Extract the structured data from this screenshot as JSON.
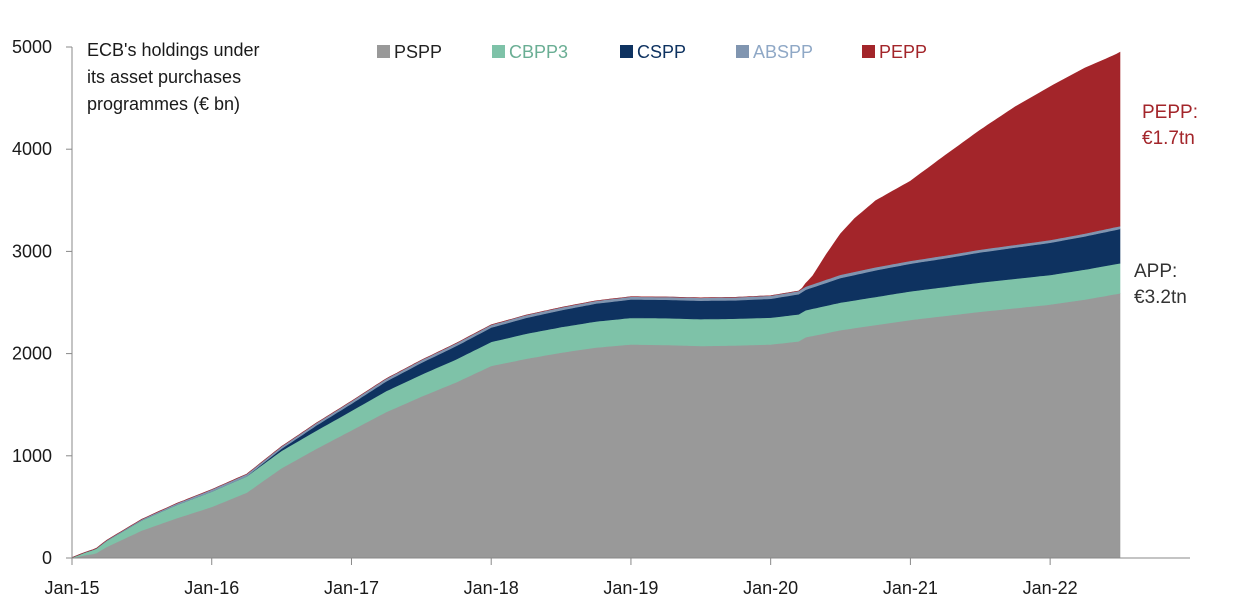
{
  "chart_data": {
    "type": "area",
    "stacked": true,
    "title": [
      "ECB's holdings under",
      "its asset purchases",
      "programmes (€ bn)"
    ],
    "x_labels": [
      "Jan-15",
      "Jan-16",
      "Jan-17",
      "Jan-18",
      "Jan-19",
      "Jan-20",
      "Jan-21",
      "Jan-22"
    ],
    "y_ticks": [
      0,
      1000,
      2000,
      3000,
      4000,
      5000
    ],
    "ylim": [
      0,
      5000
    ],
    "x_range_years": [
      0,
      7.5
    ],
    "legend_position": "top",
    "series": [
      {
        "name": "PSPP",
        "color": "#999999",
        "points": [
          [
            0,
            0
          ],
          [
            0.08,
            25
          ],
          [
            0.17,
            45
          ],
          [
            0.25,
            110
          ],
          [
            0.5,
            270
          ],
          [
            0.75,
            390
          ],
          [
            1.0,
            500
          ],
          [
            1.25,
            640
          ],
          [
            1.5,
            880
          ],
          [
            1.75,
            1070
          ],
          [
            2.0,
            1250
          ],
          [
            2.25,
            1430
          ],
          [
            2.5,
            1580
          ],
          [
            2.75,
            1720
          ],
          [
            3.0,
            1880
          ],
          [
            3.25,
            1950
          ],
          [
            3.5,
            2010
          ],
          [
            3.75,
            2060
          ],
          [
            4.0,
            2090
          ],
          [
            4.25,
            2085
          ],
          [
            4.5,
            2075
          ],
          [
            4.75,
            2080
          ],
          [
            5.0,
            2090
          ],
          [
            5.2,
            2120
          ],
          [
            5.25,
            2160
          ],
          [
            5.5,
            2230
          ],
          [
            5.75,
            2280
          ],
          [
            6.0,
            2330
          ],
          [
            6.25,
            2370
          ],
          [
            6.5,
            2410
          ],
          [
            6.75,
            2445
          ],
          [
            7.0,
            2480
          ],
          [
            7.25,
            2530
          ],
          [
            7.5,
            2590
          ]
        ]
      },
      {
        "name": "CBPP3",
        "color": "#7ec2a8",
        "points": [
          [
            0,
            5
          ],
          [
            0.25,
            60
          ],
          [
            0.5,
            100
          ],
          [
            0.75,
            130
          ],
          [
            1.0,
            150
          ],
          [
            1.25,
            160
          ],
          [
            1.5,
            170
          ],
          [
            1.75,
            178
          ],
          [
            2.0,
            190
          ],
          [
            2.25,
            205
          ],
          [
            2.5,
            215
          ],
          [
            2.75,
            225
          ],
          [
            3.0,
            235
          ],
          [
            3.25,
            245
          ],
          [
            3.5,
            250
          ],
          [
            3.75,
            255
          ],
          [
            4.0,
            260
          ],
          [
            4.25,
            262
          ],
          [
            4.5,
            263
          ],
          [
            4.75,
            262
          ],
          [
            5.0,
            262
          ],
          [
            5.25,
            265
          ],
          [
            5.5,
            270
          ],
          [
            5.75,
            275
          ],
          [
            6.0,
            280
          ],
          [
            6.25,
            283
          ],
          [
            6.5,
            286
          ],
          [
            6.75,
            288
          ],
          [
            7.0,
            290
          ],
          [
            7.25,
            293
          ],
          [
            7.5,
            295
          ]
        ]
      },
      {
        "name": "CSPP",
        "color": "#0e3260",
        "points": [
          [
            0,
            0
          ],
          [
            1.25,
            0
          ],
          [
            1.5,
            20
          ],
          [
            1.75,
            50
          ],
          [
            2.0,
            70
          ],
          [
            2.25,
            95
          ],
          [
            2.5,
            115
          ],
          [
            2.75,
            130
          ],
          [
            3.0,
            140
          ],
          [
            3.25,
            155
          ],
          [
            3.5,
            165
          ],
          [
            3.75,
            175
          ],
          [
            4.0,
            180
          ],
          [
            4.25,
            180
          ],
          [
            4.5,
            180
          ],
          [
            4.75,
            180
          ],
          [
            5.0,
            185
          ],
          [
            5.25,
            200
          ],
          [
            5.5,
            240
          ],
          [
            5.75,
            260
          ],
          [
            6.0,
            270
          ],
          [
            6.25,
            280
          ],
          [
            6.5,
            295
          ],
          [
            6.75,
            305
          ],
          [
            7.0,
            315
          ],
          [
            7.25,
            325
          ],
          [
            7.5,
            335
          ]
        ]
      },
      {
        "name": "ABSPP",
        "color": "#8095b0",
        "points": [
          [
            0,
            0
          ],
          [
            0.25,
            5
          ],
          [
            0.5,
            10
          ],
          [
            1.0,
            20
          ],
          [
            1.5,
            22
          ],
          [
            2.0,
            25
          ],
          [
            2.5,
            26
          ],
          [
            3.0,
            27
          ],
          [
            3.5,
            27
          ],
          [
            4.0,
            27
          ],
          [
            4.5,
            28
          ],
          [
            5.0,
            30
          ],
          [
            5.5,
            32
          ],
          [
            6.0,
            28
          ],
          [
            6.5,
            27
          ],
          [
            7.0,
            27
          ],
          [
            7.5,
            28
          ]
        ]
      },
      {
        "name": "PEPP",
        "color": "#a3252a",
        "points": [
          [
            0,
            0
          ],
          [
            5.22,
            0
          ],
          [
            5.3,
            80
          ],
          [
            5.4,
            250
          ],
          [
            5.5,
            400
          ],
          [
            5.6,
            520
          ],
          [
            5.75,
            650
          ],
          [
            6.0,
            780
          ],
          [
            6.25,
            980
          ],
          [
            6.5,
            1170
          ],
          [
            6.75,
            1350
          ],
          [
            7.0,
            1500
          ],
          [
            7.25,
            1620
          ],
          [
            7.45,
            1680
          ],
          [
            7.5,
            1700
          ]
        ]
      }
    ],
    "annotations": [
      {
        "text": [
          "PEPP:",
          "€1.7tn"
        ],
        "color": "#a3252a"
      },
      {
        "text": [
          "APP:",
          "€3.2tn"
        ],
        "color": "#333333"
      }
    ]
  }
}
